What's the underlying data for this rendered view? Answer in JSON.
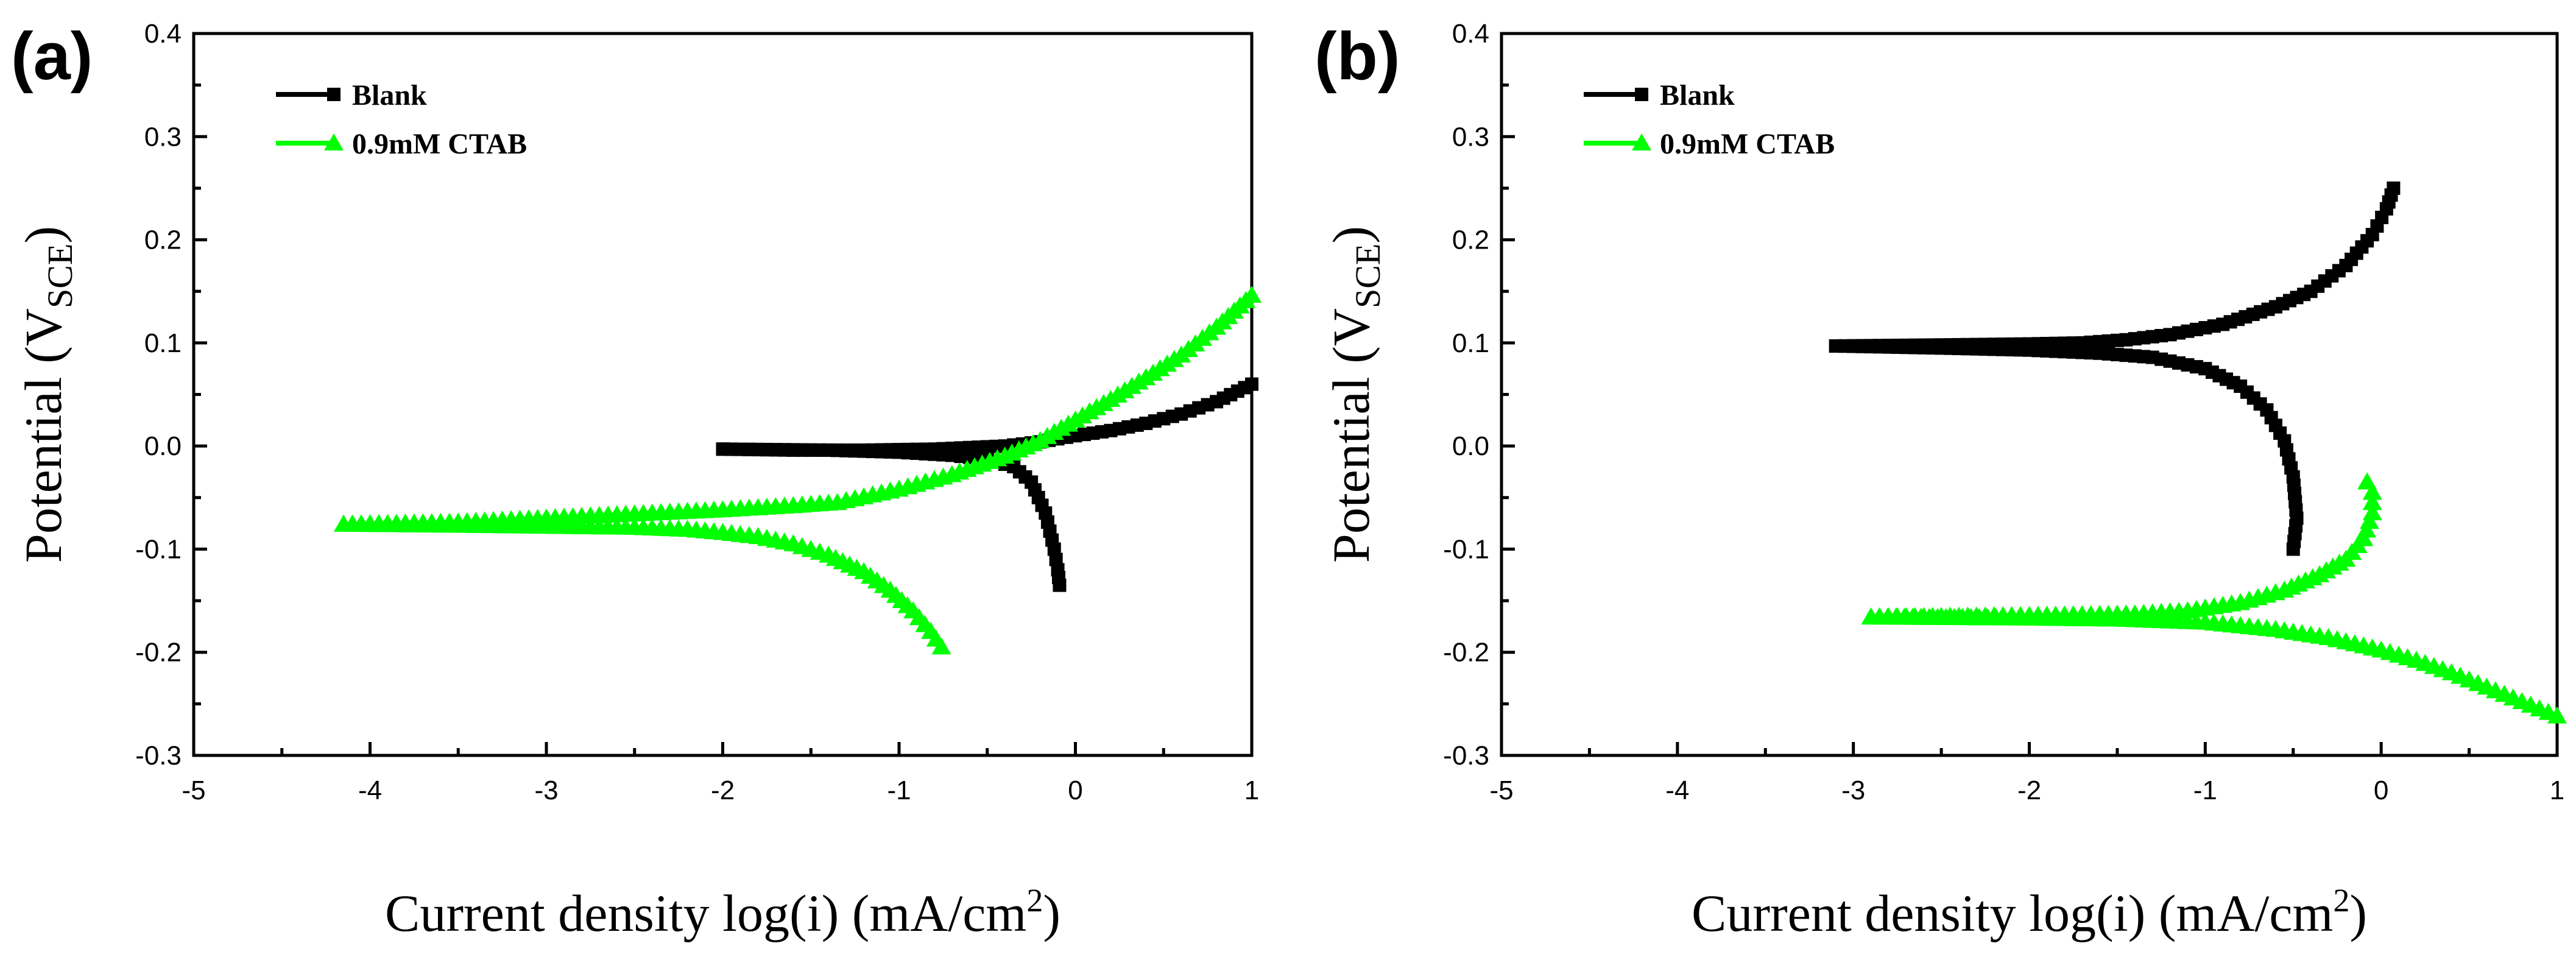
{
  "chart_data": [
    {
      "type": "line",
      "panel_label": "(a)",
      "xlabel_main": "Current density log(i) (mA/cm",
      "xlabel_sup": "2",
      "xlabel_end": ")",
      "ylabel_main": "Potential (V",
      "ylabel_sub": "SCE",
      "ylabel_end": ")",
      "xlim": [
        -5,
        1
      ],
      "ylim": [
        -0.3,
        0.4
      ],
      "xticks": [
        "-5",
        "-4",
        "-3",
        "-2",
        "-1",
        "0",
        "1"
      ],
      "yticks": [
        "-0.3",
        "-0.2",
        "-0.1",
        "0.0",
        "0.1",
        "0.2",
        "0.3",
        "0.4"
      ],
      "legend_position": "top-left",
      "series": [
        {
          "name": "Blank",
          "color": "#000000",
          "marker": "square",
          "anodic": [
            [
              -2.0,
              -0.003
            ],
            [
              -1.6,
              -0.004
            ],
            [
              -1.2,
              -0.004
            ],
            [
              -0.8,
              -0.003
            ],
            [
              -0.4,
              0.0
            ],
            [
              -0.2,
              0.004
            ],
            [
              0.0,
              0.01
            ],
            [
              0.2,
              0.015
            ],
            [
              0.4,
              0.022
            ],
            [
              0.6,
              0.031
            ],
            [
              0.8,
              0.043
            ],
            [
              1.0,
              0.06
            ]
          ],
          "cathodic": [
            [
              -2.0,
              -0.003
            ],
            [
              -1.4,
              -0.004
            ],
            [
              -1.0,
              -0.006
            ],
            [
              -0.7,
              -0.009
            ],
            [
              -0.5,
              -0.013
            ],
            [
              -0.35,
              -0.02
            ],
            [
              -0.25,
              -0.035
            ],
            [
              -0.17,
              -0.065
            ],
            [
              -0.12,
              -0.1
            ],
            [
              -0.1,
              -0.12
            ],
            [
              -0.09,
              -0.135
            ]
          ]
        },
        {
          "name": "0.9mM CTAB",
          "color": "#00ff00",
          "marker": "triangle",
          "anodic": [
            [
              -4.15,
              -0.076
            ],
            [
              -3.5,
              -0.074
            ],
            [
              -3.0,
              -0.07
            ],
            [
              -2.5,
              -0.066
            ],
            [
              -2.0,
              -0.062
            ],
            [
              -1.6,
              -0.058
            ],
            [
              -1.35,
              -0.055
            ],
            [
              -1.0,
              -0.042
            ],
            [
              -0.7,
              -0.028
            ],
            [
              -0.4,
              -0.01
            ],
            [
              -0.2,
              0.005
            ],
            [
              0.0,
              0.025
            ],
            [
              0.2,
              0.045
            ],
            [
              0.4,
              0.066
            ],
            [
              0.6,
              0.088
            ],
            [
              0.8,
              0.115
            ],
            [
              1.0,
              0.146
            ]
          ],
          "cathodic": [
            [
              -4.15,
              -0.076
            ],
            [
              -3.5,
              -0.077
            ],
            [
              -3.0,
              -0.078
            ],
            [
              -2.5,
              -0.079
            ],
            [
              -2.2,
              -0.081
            ],
            [
              -2.0,
              -0.084
            ],
            [
              -1.8,
              -0.088
            ],
            [
              -1.6,
              -0.095
            ],
            [
              -1.4,
              -0.106
            ],
            [
              -1.2,
              -0.122
            ],
            [
              -1.05,
              -0.14
            ],
            [
              -0.92,
              -0.16
            ],
            [
              -0.82,
              -0.18
            ],
            [
              -0.76,
              -0.195
            ]
          ]
        }
      ]
    },
    {
      "type": "line",
      "panel_label": "(b)",
      "xlabel_main": "Current density log(i) (mA/cm",
      "xlabel_sup": "2",
      "xlabel_end": ")",
      "ylabel_main": "Potential (V",
      "ylabel_sub": "SCE",
      "ylabel_end": ")",
      "xlim": [
        -5,
        1
      ],
      "ylim": [
        -0.3,
        0.4
      ],
      "xticks": [
        "-5",
        "-4",
        "-3",
        "-2",
        "-1",
        "0",
        "1"
      ],
      "yticks": [
        "-0.3",
        "-0.2",
        "-0.1",
        "0.0",
        "0.1",
        "0.2",
        "0.3",
        "0.4"
      ],
      "legend_position": "top-left",
      "series": [
        {
          "name": "Blank",
          "color": "#000000",
          "marker": "square",
          "anodic": [
            [
              -3.1,
              0.097
            ],
            [
              -2.5,
              0.098
            ],
            [
              -2.0,
              0.099
            ],
            [
              -1.7,
              0.1
            ],
            [
              -1.45,
              0.103
            ],
            [
              -1.2,
              0.108
            ],
            [
              -0.9,
              0.118
            ],
            [
              -0.6,
              0.135
            ],
            [
              -0.4,
              0.15
            ],
            [
              -0.2,
              0.175
            ],
            [
              -0.05,
              0.205
            ],
            [
              0.03,
              0.23
            ],
            [
              0.07,
              0.25
            ]
          ],
          "cathodic": [
            [
              -3.1,
              0.097
            ],
            [
              -2.5,
              0.095
            ],
            [
              -2.0,
              0.093
            ],
            [
              -1.6,
              0.09
            ],
            [
              -1.3,
              0.086
            ],
            [
              -1.0,
              0.075
            ],
            [
              -0.8,
              0.058
            ],
            [
              -0.65,
              0.035
            ],
            [
              -0.55,
              0.005
            ],
            [
              -0.5,
              -0.03
            ],
            [
              -0.48,
              -0.07
            ],
            [
              -0.5,
              -0.1
            ]
          ]
        },
        {
          "name": "0.9mM CTAB",
          "color": "#00ff00",
          "marker": "triangle",
          "anodic": [
            [
              -2.9,
              -0.166
            ],
            [
              -2.3,
              -0.165
            ],
            [
              -1.8,
              -0.164
            ],
            [
              -1.4,
              -0.163
            ],
            [
              -1.1,
              -0.16
            ],
            [
              -0.8,
              -0.152
            ],
            [
              -0.55,
              -0.14
            ],
            [
              -0.35,
              -0.125
            ],
            [
              -0.2,
              -0.11
            ],
            [
              -0.1,
              -0.09
            ],
            [
              -0.05,
              -0.065
            ],
            [
              -0.05,
              -0.045
            ],
            [
              -0.08,
              -0.035
            ]
          ],
          "cathodic": [
            [
              -2.9,
              -0.166
            ],
            [
              -2.0,
              -0.167
            ],
            [
              -1.5,
              -0.168
            ],
            [
              -1.0,
              -0.171
            ],
            [
              -0.6,
              -0.178
            ],
            [
              -0.3,
              -0.186
            ],
            [
              0.0,
              -0.198
            ],
            [
              0.2,
              -0.208
            ],
            [
              0.4,
              -0.22
            ],
            [
              0.6,
              -0.234
            ],
            [
              0.8,
              -0.248
            ],
            [
              1.0,
              -0.262
            ]
          ]
        }
      ]
    }
  ]
}
